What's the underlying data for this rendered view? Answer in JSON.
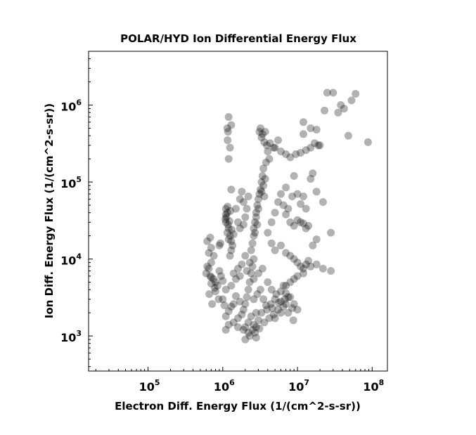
{
  "chart_data": {
    "type": "scatter",
    "title": "POLAR/HYD  Ion Differential Energy Flux",
    "xlabel": "Electron Diff. Energy Flux (1/(cm^2-s-sr))",
    "ylabel": "Ion Diff. Energy Flux (1/(cm^2-s-sr))",
    "xscale": "log",
    "yscale": "log",
    "xlim": [
      16000,
      160000000
    ],
    "ylim": [
      350,
      5000000
    ],
    "xticks": [
      {
        "base": "10",
        "exp": "5"
      },
      {
        "base": "10",
        "exp": "6"
      },
      {
        "base": "10",
        "exp": "7"
      },
      {
        "base": "10",
        "exp": "8"
      }
    ],
    "yticks": [
      {
        "base": "10",
        "exp": "3"
      },
      {
        "base": "10",
        "exp": "4"
      },
      {
        "base": "10",
        "exp": "5"
      },
      {
        "base": "10",
        "exp": "6"
      }
    ],
    "grid": false,
    "marker_color": "#000000",
    "marker_alpha": 0.3,
    "points": [
      [
        25000000,
        1450000
      ],
      [
        30000000,
        1450000
      ],
      [
        60000000,
        1400000
      ],
      [
        38000000,
        1000000
      ],
      [
        53000000,
        1150000
      ],
      [
        35000000,
        800000
      ],
      [
        42000000,
        900000
      ],
      [
        23000000,
        850000
      ],
      [
        48000000,
        400000
      ],
      [
        88000000,
        330000
      ],
      [
        1200000,
        700000
      ],
      [
        1180000,
        450000
      ],
      [
        1160000,
        350000
      ],
      [
        1250000,
        280000
      ],
      [
        1200000,
        200000
      ],
      [
        1150000,
        500000
      ],
      [
        1300000,
        550000
      ],
      [
        1300000,
        80000
      ],
      [
        3200000,
        500000
      ],
      [
        3400000,
        420000
      ],
      [
        3700000,
        450000
      ],
      [
        3300000,
        380000
      ],
      [
        3600000,
        330000
      ],
      [
        3900000,
        300000
      ],
      [
        4300000,
        320000
      ],
      [
        5000000,
        280000
      ],
      [
        6000000,
        250000
      ],
      [
        7000000,
        230000
      ],
      [
        8000000,
        210000
      ],
      [
        9500000,
        230000
      ],
      [
        11000000,
        240000
      ],
      [
        13000000,
        260000
      ],
      [
        15000000,
        280000
      ],
      [
        17000000,
        320000
      ],
      [
        19000000,
        300000
      ],
      [
        12000000,
        420000
      ],
      [
        12000000,
        600000
      ],
      [
        15000000,
        500000
      ],
      [
        18000000,
        480000
      ],
      [
        20000000,
        300000
      ],
      [
        4000000,
        250000
      ],
      [
        4200000,
        200000
      ],
      [
        3800000,
        180000
      ],
      [
        3500000,
        150000
      ],
      [
        3400000,
        120000
      ],
      [
        4800000,
        280000
      ],
      [
        5500000,
        350000
      ],
      [
        3100000,
        450000
      ],
      [
        3300000,
        100000
      ],
      [
        3200000,
        80000
      ],
      [
        3000000,
        60000
      ],
      [
        2900000,
        50000
      ],
      [
        2800000,
        40000
      ],
      [
        2700000,
        30000
      ],
      [
        2600000,
        25000
      ],
      [
        2800000,
        35000
      ],
      [
        3000000,
        45000
      ],
      [
        3100000,
        70000
      ],
      [
        2900000,
        28000
      ],
      [
        2700000,
        22000
      ],
      [
        3500000,
        90000
      ],
      [
        3700000,
        110000
      ],
      [
        3300000,
        75000
      ],
      [
        3600000,
        65000
      ],
      [
        2600000,
        20000
      ],
      [
        2500000,
        16000
      ],
      [
        2400000,
        13000
      ],
      [
        2600000,
        10000
      ],
      [
        2500000,
        8000
      ],
      [
        2400000,
        6500
      ],
      [
        2300000,
        5000
      ],
      [
        2200000,
        4000
      ],
      [
        2100000,
        3200
      ],
      [
        2000000,
        2600
      ],
      [
        1900000,
        2200
      ],
      [
        1800000,
        1900
      ],
      [
        2600000,
        3000
      ],
      [
        2900000,
        3500
      ],
      [
        3200000,
        4000
      ],
      [
        3500000,
        3000
      ],
      [
        3800000,
        2500
      ],
      [
        2800000,
        2000
      ],
      [
        2400000,
        1800
      ],
      [
        2200000,
        1500
      ],
      [
        2600000,
        1400
      ],
      [
        3000000,
        1600
      ],
      [
        3300000,
        2000
      ],
      [
        2000000,
        1300
      ],
      [
        1700000,
        2800
      ],
      [
        1500000,
        3300
      ],
      [
        1400000,
        2600
      ],
      [
        1300000,
        2400
      ],
      [
        1200000,
        2100
      ],
      [
        1100000,
        1800
      ],
      [
        1050000,
        2500
      ],
      [
        1000000,
        3000
      ],
      [
        1100000,
        4000
      ],
      [
        1300000,
        4500
      ],
      [
        1500000,
        5500
      ],
      [
        1700000,
        6000
      ],
      [
        2100000,
        7000
      ],
      [
        2300000,
        9000
      ],
      [
        2000000,
        11000
      ],
      [
        1800000,
        8500
      ],
      [
        1600000,
        7500
      ],
      [
        1400000,
        6500
      ],
      [
        2600000,
        5500
      ],
      [
        3000000,
        6500
      ],
      [
        3400000,
        7500
      ],
      [
        4000000,
        5000
      ],
      [
        4500000,
        4000
      ],
      [
        5000000,
        3000
      ],
      [
        6000000,
        2800
      ],
      [
        7000000,
        2600
      ],
      [
        5500000,
        2200
      ],
      [
        4800000,
        1900
      ],
      [
        4200000,
        1700
      ],
      [
        3600000,
        1500
      ],
      [
        3900000,
        2200
      ],
      [
        4400000,
        2600
      ],
      [
        5200000,
        3500
      ],
      [
        6500000,
        4500
      ],
      [
        7500000,
        3200
      ],
      [
        8500000,
        2300
      ],
      [
        1600000,
        1700
      ],
      [
        1400000,
        1500
      ],
      [
        1200000,
        1400
      ],
      [
        1100000,
        1200
      ],
      [
        1600000,
        1300
      ],
      [
        1900000,
        1200
      ],
      [
        2200000,
        1100
      ],
      [
        2500000,
        1200
      ],
      [
        2800000,
        1300
      ],
      [
        3100000,
        1250
      ],
      [
        2000000,
        900
      ],
      [
        2800000,
        950
      ],
      [
        2300000,
        1000
      ],
      [
        2700000,
        1100
      ],
      [
        700000,
        9000
      ],
      [
        650000,
        7500
      ],
      [
        600000,
        6500
      ],
      [
        680000,
        6000
      ],
      [
        750000,
        5500
      ],
      [
        800000,
        5000
      ],
      [
        850000,
        4500
      ],
      [
        700000,
        5800
      ],
      [
        620000,
        8000
      ],
      [
        900000,
        7000
      ],
      [
        950000,
        6000
      ],
      [
        1000000,
        5200
      ],
      [
        700000,
        4800
      ],
      [
        780000,
        4200
      ],
      [
        660000,
        3500
      ],
      [
        720000,
        2600
      ],
      [
        800000,
        3800
      ],
      [
        880000,
        3000
      ],
      [
        650000,
        12000
      ],
      [
        700000,
        14000
      ],
      [
        620000,
        17000
      ],
      [
        680000,
        19000
      ],
      [
        760000,
        11000
      ],
      [
        1100000,
        45000
      ],
      [
        1150000,
        40000
      ],
      [
        1120000,
        35000
      ],
      [
        1100000,
        30000
      ],
      [
        1180000,
        28000
      ],
      [
        1200000,
        25000
      ],
      [
        1150000,
        22000
      ],
      [
        1250000,
        20000
      ],
      [
        1300000,
        17000
      ],
      [
        1350000,
        15000
      ],
      [
        1200000,
        18000
      ],
      [
        1100000,
        38000
      ],
      [
        1080000,
        33000
      ],
      [
        1260000,
        42000
      ],
      [
        1320000,
        24000
      ],
      [
        1400000,
        21000
      ],
      [
        1160000,
        48000
      ],
      [
        1230000,
        31000
      ],
      [
        1300000,
        13000
      ],
      [
        1250000,
        11000
      ],
      [
        930000,
        16000
      ],
      [
        900000,
        15000
      ],
      [
        1500000,
        45000
      ],
      [
        1600000,
        30000
      ],
      [
        1700000,
        60000
      ],
      [
        1800000,
        75000
      ],
      [
        1900000,
        55000
      ],
      [
        2000000,
        35000
      ],
      [
        2100000,
        45000
      ],
      [
        2200000,
        65000
      ],
      [
        1700000,
        25000
      ],
      [
        1900000,
        28000
      ],
      [
        4000000,
        22000
      ],
      [
        4500000,
        30000
      ],
      [
        5000000,
        40000
      ],
      [
        5500000,
        55000
      ],
      [
        6000000,
        70000
      ],
      [
        6500000,
        50000
      ],
      [
        7000000,
        38000
      ],
      [
        7500000,
        45000
      ],
      [
        8000000,
        30000
      ],
      [
        9000000,
        27000
      ],
      [
        10000000,
        32000
      ],
      [
        11000000,
        30000
      ],
      [
        12000000,
        29000
      ],
      [
        13000000,
        25000
      ],
      [
        14000000,
        27000
      ],
      [
        8500000,
        65000
      ],
      [
        10000000,
        70000
      ],
      [
        12000000,
        65000
      ],
      [
        11000000,
        52000
      ],
      [
        13000000,
        45000
      ],
      [
        7000000,
        85000
      ],
      [
        9000000,
        120000
      ],
      [
        16000000,
        130000
      ],
      [
        18000000,
        75000
      ],
      [
        15000000,
        110000
      ],
      [
        22000000,
        55000
      ],
      [
        28000000,
        22000
      ],
      [
        18000000,
        18000
      ],
      [
        16000000,
        15000
      ],
      [
        4500000,
        16000
      ],
      [
        5000000,
        13000
      ],
      [
        6000000,
        15000
      ],
      [
        7000000,
        12000
      ],
      [
        8000000,
        11000
      ],
      [
        9000000,
        10000
      ],
      [
        10000000,
        9000
      ],
      [
        11000000,
        8000
      ],
      [
        12000000,
        7500
      ],
      [
        13000000,
        8500
      ],
      [
        14000000,
        9500
      ],
      [
        15000000,
        8000
      ],
      [
        18000000,
        8500
      ],
      [
        22000000,
        7500
      ],
      [
        28000000,
        7000
      ],
      [
        12000000,
        6500
      ],
      [
        10000000,
        6000
      ],
      [
        9000000,
        5500
      ],
      [
        8000000,
        5000
      ],
      [
        7000000,
        4500
      ],
      [
        6000000,
        3800
      ],
      [
        7000000,
        3600
      ],
      [
        8000000,
        3200
      ],
      [
        6500000,
        2400
      ],
      [
        6000000,
        2000
      ],
      [
        5000000,
        1700
      ],
      [
        7500000,
        2000
      ],
      [
        8800000,
        1600
      ],
      [
        10000000,
        2200
      ],
      [
        9000000,
        2600
      ],
      [
        4600000,
        2300
      ],
      [
        5600000,
        2700
      ],
      [
        6800000,
        3000
      ]
    ]
  }
}
